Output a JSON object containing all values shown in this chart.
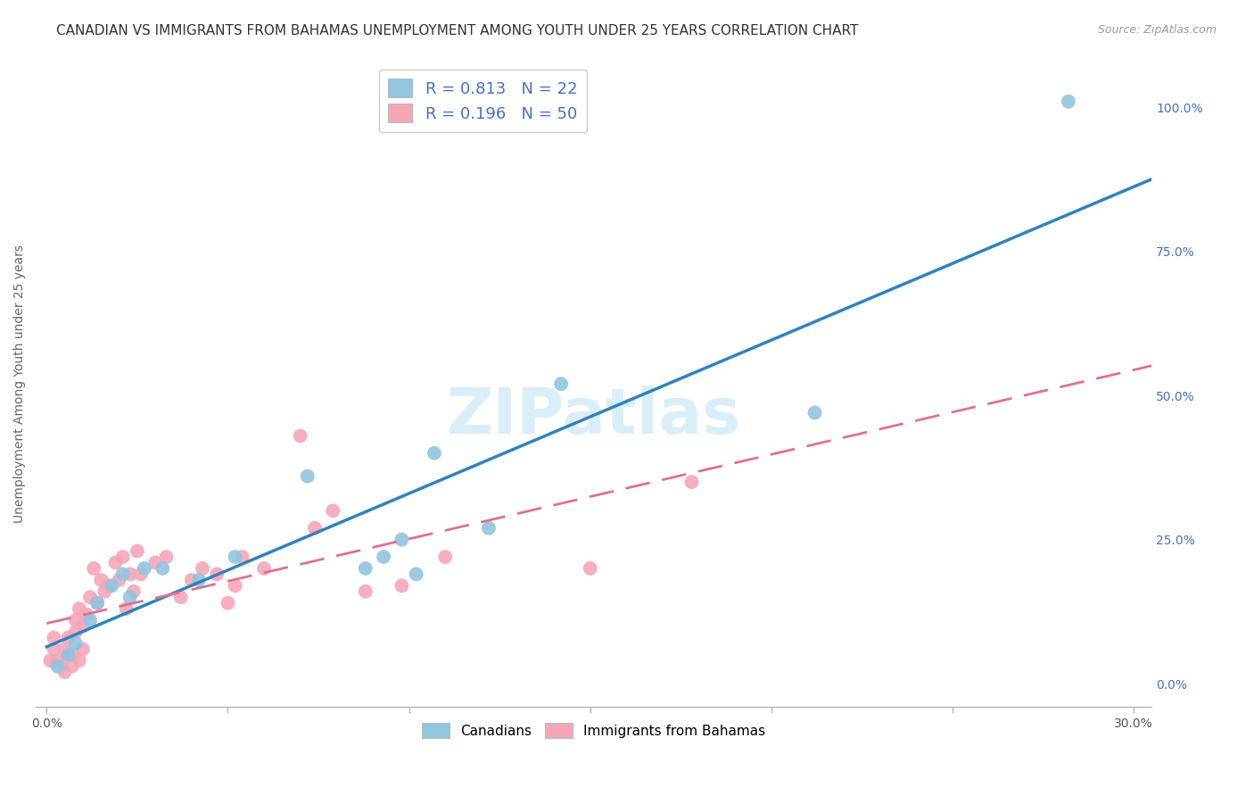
{
  "title": "CANADIAN VS IMMIGRANTS FROM BAHAMAS UNEMPLOYMENT AMONG YOUTH UNDER 25 YEARS CORRELATION CHART",
  "source": "Source: ZipAtlas.com",
  "ylabel": "Unemployment Among Youth under 25 years",
  "xlim": [
    -0.003,
    0.305
  ],
  "ylim": [
    -0.04,
    1.08
  ],
  "canadian_R": 0.813,
  "canadian_N": 22,
  "bahamas_R": 0.196,
  "bahamas_N": 50,
  "canadian_color": "#92c5de",
  "bahamas_color": "#f4a6b8",
  "canadian_line_color": "#3182bd",
  "bahamas_line_color": "#e07090",
  "background_color": "#ffffff",
  "grid_color": "#cccccc",
  "watermark_color": "#daeef7",
  "right_tick_color": "#4472c4",
  "canadian_dots_x": [
    0.003,
    0.006,
    0.008,
    0.012,
    0.014,
    0.018,
    0.021,
    0.023,
    0.027,
    0.032,
    0.042,
    0.052,
    0.072,
    0.088,
    0.093,
    0.098,
    0.102,
    0.107,
    0.122,
    0.142,
    0.212,
    0.282
  ],
  "canadian_dots_y": [
    0.03,
    0.05,
    0.07,
    0.11,
    0.14,
    0.17,
    0.19,
    0.15,
    0.2,
    0.2,
    0.18,
    0.22,
    0.36,
    0.2,
    0.22,
    0.25,
    0.19,
    0.4,
    0.27,
    0.52,
    0.47,
    1.01
  ],
  "bahamas_dots_x": [
    0.001,
    0.002,
    0.002,
    0.003,
    0.004,
    0.005,
    0.005,
    0.006,
    0.006,
    0.007,
    0.007,
    0.008,
    0.008,
    0.009,
    0.009,
    0.01,
    0.01,
    0.011,
    0.012,
    0.013,
    0.014,
    0.015,
    0.016,
    0.017,
    0.019,
    0.02,
    0.021,
    0.022,
    0.023,
    0.024,
    0.025,
    0.026,
    0.03,
    0.033,
    0.037,
    0.04,
    0.043,
    0.047,
    0.05,
    0.052,
    0.054,
    0.06,
    0.07,
    0.074,
    0.079,
    0.088,
    0.098,
    0.11,
    0.15,
    0.178
  ],
  "bahamas_dots_y": [
    0.04,
    0.06,
    0.08,
    0.04,
    0.03,
    0.02,
    0.06,
    0.05,
    0.08,
    0.03,
    0.05,
    0.09,
    0.11,
    0.04,
    0.13,
    0.06,
    0.1,
    0.12,
    0.15,
    0.2,
    0.14,
    0.18,
    0.16,
    0.17,
    0.21,
    0.18,
    0.22,
    0.13,
    0.19,
    0.16,
    0.23,
    0.19,
    0.21,
    0.22,
    0.15,
    0.18,
    0.2,
    0.19,
    0.14,
    0.17,
    0.22,
    0.2,
    0.43,
    0.27,
    0.3,
    0.16,
    0.17,
    0.22,
    0.2,
    0.35
  ],
  "title_fontsize": 11,
  "axis_label_fontsize": 10,
  "tick_fontsize": 10,
  "legend_fontsize": 13,
  "right_yticks": [
    0.0,
    0.25,
    0.5,
    0.75,
    1.0
  ],
  "xtick_positions": [
    0.0,
    0.05,
    0.1,
    0.15,
    0.2,
    0.25,
    0.3
  ]
}
